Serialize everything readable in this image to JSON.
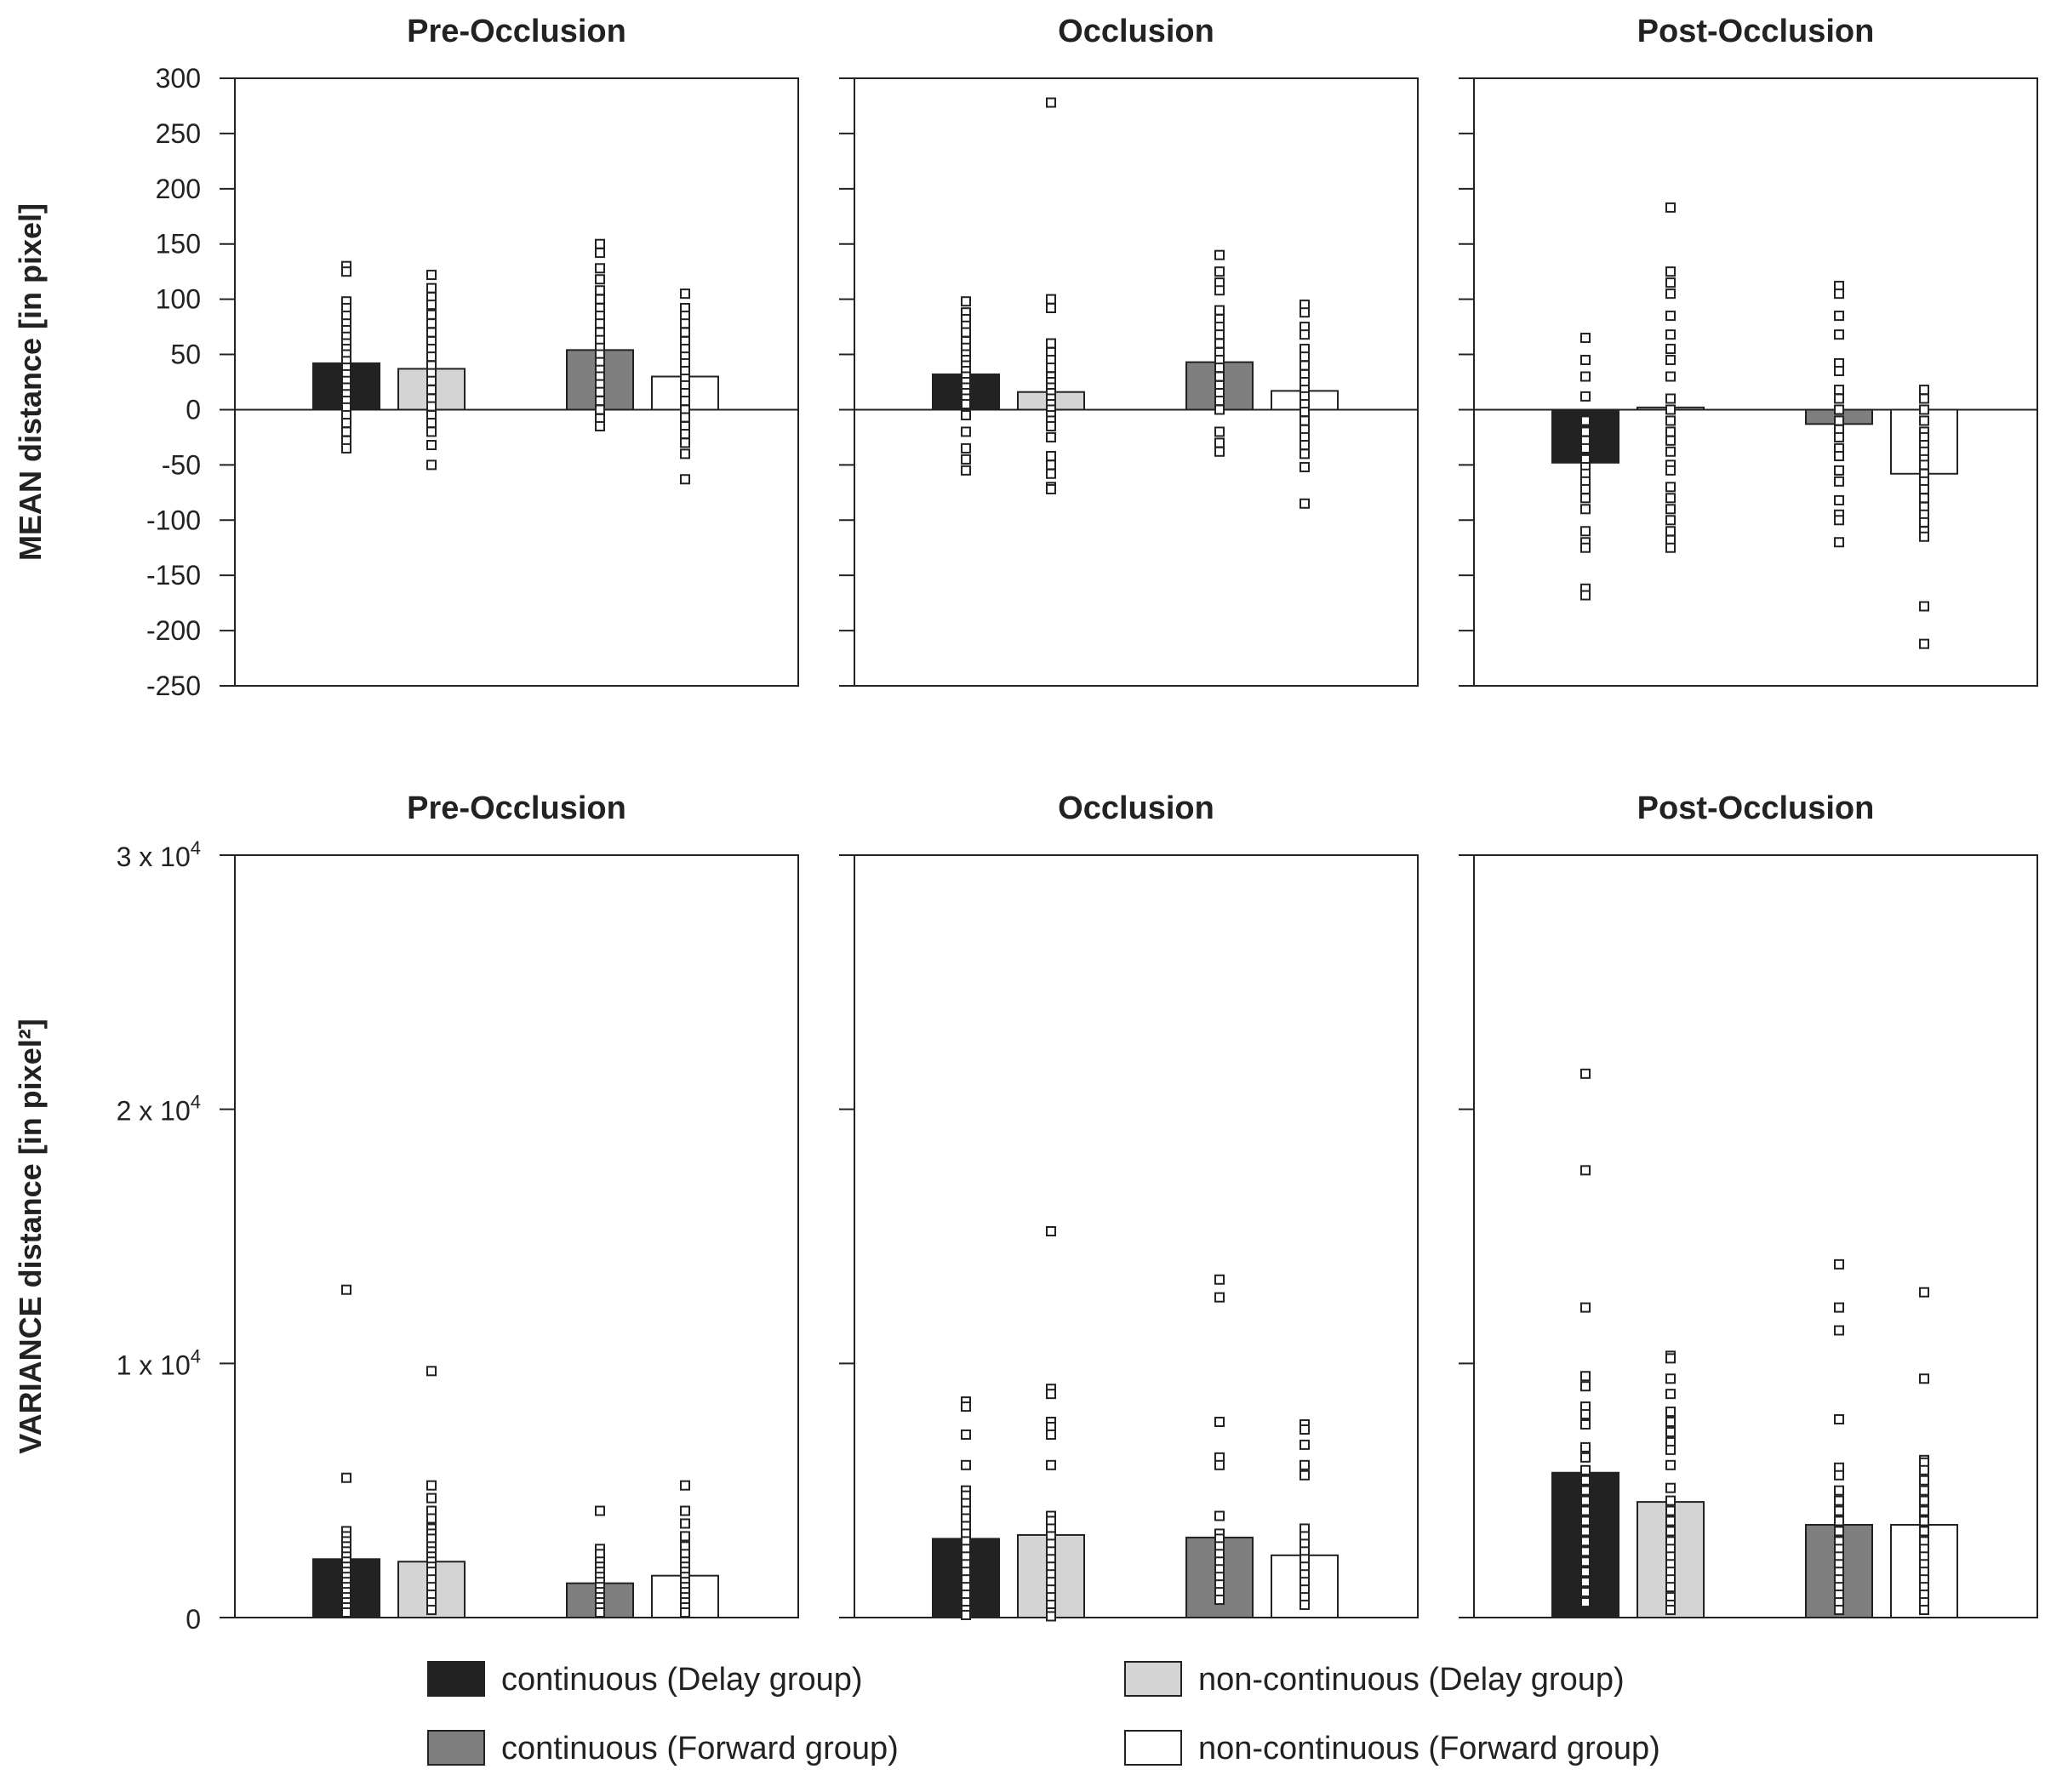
{
  "chart_data": {
    "type": "bar",
    "conditions": [
      {
        "key": "cd",
        "label": "continuous (Delay group)",
        "color": "#222222"
      },
      {
        "key": "nd",
        "label": "non-continuous (Delay group)",
        "color": "#d4d4d4"
      },
      {
        "key": "cf",
        "label": "continuous (Forward group)",
        "color": "#7f7f7f"
      },
      {
        "key": "nf",
        "label": "non-continuous (Forward group)",
        "color": "#ffffff"
      }
    ],
    "mean": {
      "ylabel": "MEAN distance [in pixel]",
      "ylim": [
        -250,
        300
      ],
      "yticks": [
        300,
        250,
        200,
        150,
        100,
        50,
        0,
        -50,
        -100,
        -150,
        -200,
        -250
      ],
      "panels": [
        {
          "title": "Pre-Occlusion",
          "bars": [
            42,
            37,
            54,
            30
          ],
          "points": [
            [
              130,
              125,
              98,
              92,
              85,
              78,
              72,
              66,
              60,
              55,
              50,
              44,
              38,
              32,
              26,
              20,
              14,
              8,
              2,
              -5,
              -12,
              -20,
              -28,
              -35
            ],
            [
              122,
              110,
              102,
              95,
              86,
              78,
              70,
              62,
              55,
              48,
              40,
              33,
              26,
              18,
              10,
              3,
              -5,
              -12,
              -20,
              -32,
              -50
            ],
            [
              150,
              142,
              128,
              118,
              108,
              100,
              92,
              85,
              78,
              70,
              63,
              56,
              50,
              43,
              36,
              30,
              23,
              16,
              8,
              0,
              -8,
              -15
            ],
            [
              105,
              92,
              85,
              78,
              70,
              62,
              55,
              48,
              42,
              35,
              28,
              22,
              15,
              8,
              0,
              -7,
              -15,
              -22,
              -30,
              -40,
              -63
            ]
          ]
        },
        {
          "title": "Occlusion",
          "bars": [
            32,
            16,
            43,
            17
          ],
          "points": [
            [
              98,
              88,
              82,
              76,
              70,
              62,
              56,
              50,
              45,
              40,
              35,
              30,
              25,
              20,
              15,
              10,
              5,
              -5,
              -20,
              -35,
              -45,
              -55
            ],
            [
              278,
              100,
              92,
              60,
              52,
              45,
              38,
              30,
              25,
              20,
              15,
              10,
              5,
              0,
              -5,
              -10,
              -15,
              -25,
              -42,
              -50,
              -58,
              -70,
              -72
            ],
            [
              140,
              125,
              115,
              108,
              90,
              82,
              75,
              68,
              60,
              52,
              45,
              38,
              30,
              22,
              15,
              8,
              0,
              -20,
              -30,
              -38
            ],
            [
              95,
              88,
              75,
              68,
              55,
              48,
              40,
              32,
              25,
              18,
              12,
              5,
              -2,
              -10,
              -18,
              -25,
              -32,
              -40,
              -52,
              -85
            ]
          ]
        },
        {
          "title": "Post-Occlusion",
          "bars": [
            -48,
            2,
            -13,
            -58
          ],
          "points": [
            [
              65,
              45,
              30,
              12,
              -10,
              -20,
              -28,
              -35,
              -45,
              -52,
              -58,
              -65,
              -72,
              -80,
              -90,
              -110,
              -120,
              -125,
              -162,
              -168
            ],
            [
              183,
              125,
              115,
              105,
              85,
              68,
              55,
              45,
              30,
              10,
              0,
              -10,
              -20,
              -28,
              -38,
              -50,
              -55,
              -70,
              -80,
              -90,
              -100,
              -110,
              -118,
              -125
            ],
            [
              112,
              105,
              85,
              68,
              42,
              35,
              18,
              10,
              0,
              -10,
              -18,
              -25,
              -35,
              -42,
              -55,
              -65,
              -82,
              -95,
              -100,
              -120
            ],
            [
              18,
              10,
              0,
              -10,
              -20,
              -25,
              -32,
              -38,
              -45,
              -50,
              -58,
              -65,
              -72,
              -80,
              -88,
              -95,
              -102,
              -110,
              -115,
              -178,
              -212
            ]
          ]
        }
      ]
    },
    "variance": {
      "ylabel": "VARIANCE distance [in pixel²]",
      "ymax": 30000,
      "yticks": [
        {
          "value": 30000,
          "mantissa": "3 x 10",
          "exp": "4"
        },
        {
          "value": 20000,
          "mantissa": "2 x 10",
          "exp": "4"
        },
        {
          "value": 10000,
          "mantissa": "1 x 10",
          "exp": "4"
        },
        {
          "value": 0,
          "mantissa": "0",
          "exp": ""
        }
      ],
      "panels": [
        {
          "title": "Pre-Occlusion",
          "bars": [
            2300,
            2200,
            1350,
            1650
          ],
          "points": [
            [
              12900,
              5500,
              3400,
              3200,
              3000,
              2800,
              2600,
              2400,
              2200,
              2000,
              1800,
              1600,
              1400,
              1200,
              1000,
              800,
              600,
              400,
              200
            ],
            [
              9700,
              5200,
              4700,
              4200,
              3900,
              3500,
              3300,
              3100,
              2800,
              2600,
              2400,
              2200,
              2000,
              1800,
              1500,
              1200,
              900,
              600,
              300
            ],
            [
              4200,
              2700,
              2500,
              2200,
              2000,
              1800,
              1600,
              1400,
              1200,
              1000,
              800,
              600,
              400,
              200
            ],
            [
              5200,
              4200,
              3700,
              3200,
              2800,
              2500,
              2200,
              2000,
              1800,
              1600,
              1400,
              1200,
              1000,
              800,
              600,
              400,
              200
            ]
          ]
        },
        {
          "title": "Occlusion",
          "bars": [
            3100,
            3250,
            3150,
            2450
          ],
          "points": [
            [
              8500,
              8300,
              7200,
              6000,
              5000,
              4800,
              4500,
              4200,
              3900,
              3600,
              3300,
              3000,
              2700,
              2400,
              2100,
              1800,
              1500,
              1200,
              900,
              600,
              300,
              100
            ],
            [
              15200,
              9000,
              8800,
              7700,
              7500,
              7200,
              6000,
              4000,
              3800,
              3500,
              3200,
              2900,
              2600,
              2300,
              2000,
              1700,
              1400,
              1100,
              800,
              500,
              200,
              50
            ],
            [
              13300,
              12600,
              7700,
              6300,
              6000,
              4000,
              3300,
              3100,
              2800,
              2500,
              2200,
              1900,
              1600,
              1300,
              1000,
              700
            ],
            [
              7600,
              7400,
              6800,
              6000,
              5600,
              3500,
              3200,
              2900,
              2600,
              2300,
              2000,
              1700,
              1400,
              1100,
              800,
              500
            ]
          ]
        },
        {
          "title": "Post-Occlusion",
          "bars": [
            5700,
            4550,
            3650,
            3650
          ],
          "points": [
            [
              21400,
              17600,
              12200,
              9500,
              9100,
              8300,
              8000,
              7600,
              6700,
              6300,
              5800,
              5400,
              5000,
              4600,
              4200,
              3800,
              3400,
              3000,
              2600,
              2200,
              1800,
              1400,
              1000,
              600
            ],
            [
              10300,
              10200,
              9400,
              8800,
              8100,
              7700,
              7300,
              6900,
              6600,
              6000,
              5100,
              4600,
              4200,
              3800,
              3400,
              3000,
              2700,
              2400,
              2100,
              1800,
              1500,
              1200,
              800,
              500,
              300
            ],
            [
              13900,
              12200,
              11300,
              7800,
              5900,
              5600,
              5000,
              4600,
              4200,
              3800,
              3400,
              3000,
              2700,
              2400,
              2100,
              1800,
              1500,
              1200,
              900,
              600,
              300
            ],
            [
              12800,
              9400,
              6200,
              6100,
              5800,
              5400,
              5000,
              4600,
              4200,
              3800,
              3400,
              3000,
              2700,
              2400,
              2100,
              1800,
              1500,
              1200,
              900,
              600,
              300
            ]
          ]
        }
      ]
    }
  }
}
